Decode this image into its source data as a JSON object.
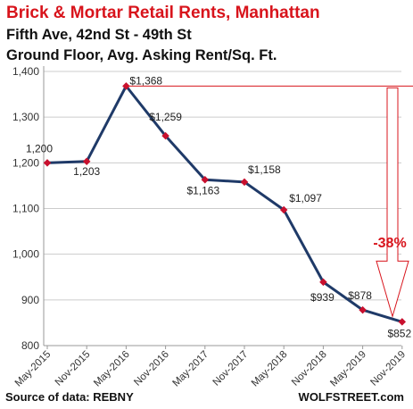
{
  "title": "Brick & Mortar Retail Rents, Manhattan",
  "subtitle_lines": [
    "Fifth Ave, 42nd St - 49th St",
    "Ground Floor, Avg. Asking Rent/Sq. Ft."
  ],
  "source": "Source of data: REBNY",
  "brand": "WOLFSTREET.com",
  "colors": {
    "title": "#d8141c",
    "line": "#1f3a68",
    "marker": "#c8102e",
    "annotation": "#d8141c",
    "grid": "#cccccc"
  },
  "chart_data": {
    "type": "line",
    "categories": [
      "May-2015",
      "Nov-2015",
      "May-2016",
      "Nov-2016",
      "May-2017",
      "Nov-2017",
      "May-2018",
      "Nov-2018",
      "May-2019",
      "Nov-2019"
    ],
    "values": [
      1200,
      1203,
      1368,
      1259,
      1163,
      1158,
      1097,
      939,
      878,
      852
    ],
    "data_labels": [
      "1,200",
      "1,203",
      "$1,368",
      "$1,259",
      "$1,163",
      "$1,158",
      "$1,097",
      "$939",
      "$878",
      "$852"
    ],
    "y_ticks": [
      800,
      900,
      1000,
      1100,
      1200,
      1300,
      1400
    ],
    "y_tick_labels": [
      "800",
      "900",
      "1,000",
      "1,100",
      "1,200",
      "1,300",
      "1,400"
    ],
    "ylim": [
      800,
      1400
    ],
    "grid": true,
    "annotation": {
      "text": "-38%",
      "from_value": 1368,
      "to_value": 852
    }
  }
}
